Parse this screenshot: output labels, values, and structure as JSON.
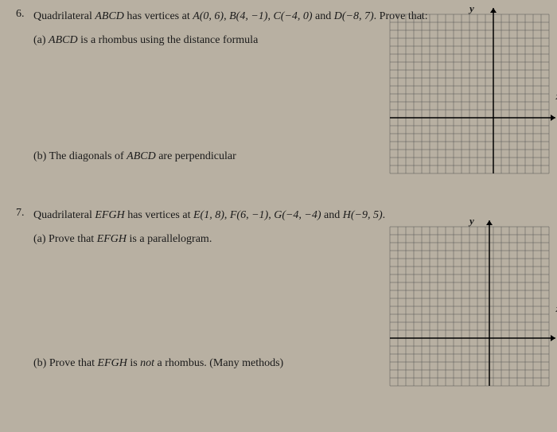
{
  "problem6": {
    "number": "6.",
    "intro": "Quadrilateral ",
    "quad": "ABCD",
    "has_vertices": " has vertices at ",
    "pt_a": "A(0, 6)",
    "sep1": ", ",
    "pt_b": "B(4, −1)",
    "sep2": ", ",
    "pt_c": "C(−4, 0)",
    "sep3": " and ",
    "pt_d": "D(−8, 7)",
    "prove": ". Prove that:",
    "part_a": "(a) ",
    "part_a_quad": "ABCD",
    "part_a_text": " is a rhombus using the distance formula",
    "part_b": "(b) The diagonals of ",
    "part_b_quad": "ABCD",
    "part_b_text": " are perpendicular"
  },
  "problem7": {
    "number": "7.",
    "intro": "Quadrilateral ",
    "quad": "EFGH",
    "has_vertices": " has vertices at ",
    "pt_e": "E(1, 8)",
    "sep1": ", ",
    "pt_f": "F(6, −1)",
    "sep2": ", ",
    "pt_g": "G(−4, −4)",
    "sep3": " and ",
    "pt_h": "H(−9, 5)",
    "period": ".",
    "part_a": "(a) Prove that ",
    "part_a_quad": "EFGH",
    "part_a_text": " is a parallelogram.",
    "part_b": "(b) Prove that ",
    "part_b_quad": "EFGH",
    "part_b_text": " is ",
    "part_b_not": "not",
    "part_b_text2": " a rhombus. (Many methods)"
  },
  "axes": {
    "y_label": "y",
    "x_label": "x"
  },
  "grid": {
    "size": 200,
    "cells": 20,
    "cell_size": 10,
    "line_color": "#555555",
    "axis_color": "#000000",
    "axis_y_pos_1": 130,
    "axis_x_pos_1": 130,
    "axis_y_pos_2": 125,
    "axis_x_pos_2": 140
  }
}
